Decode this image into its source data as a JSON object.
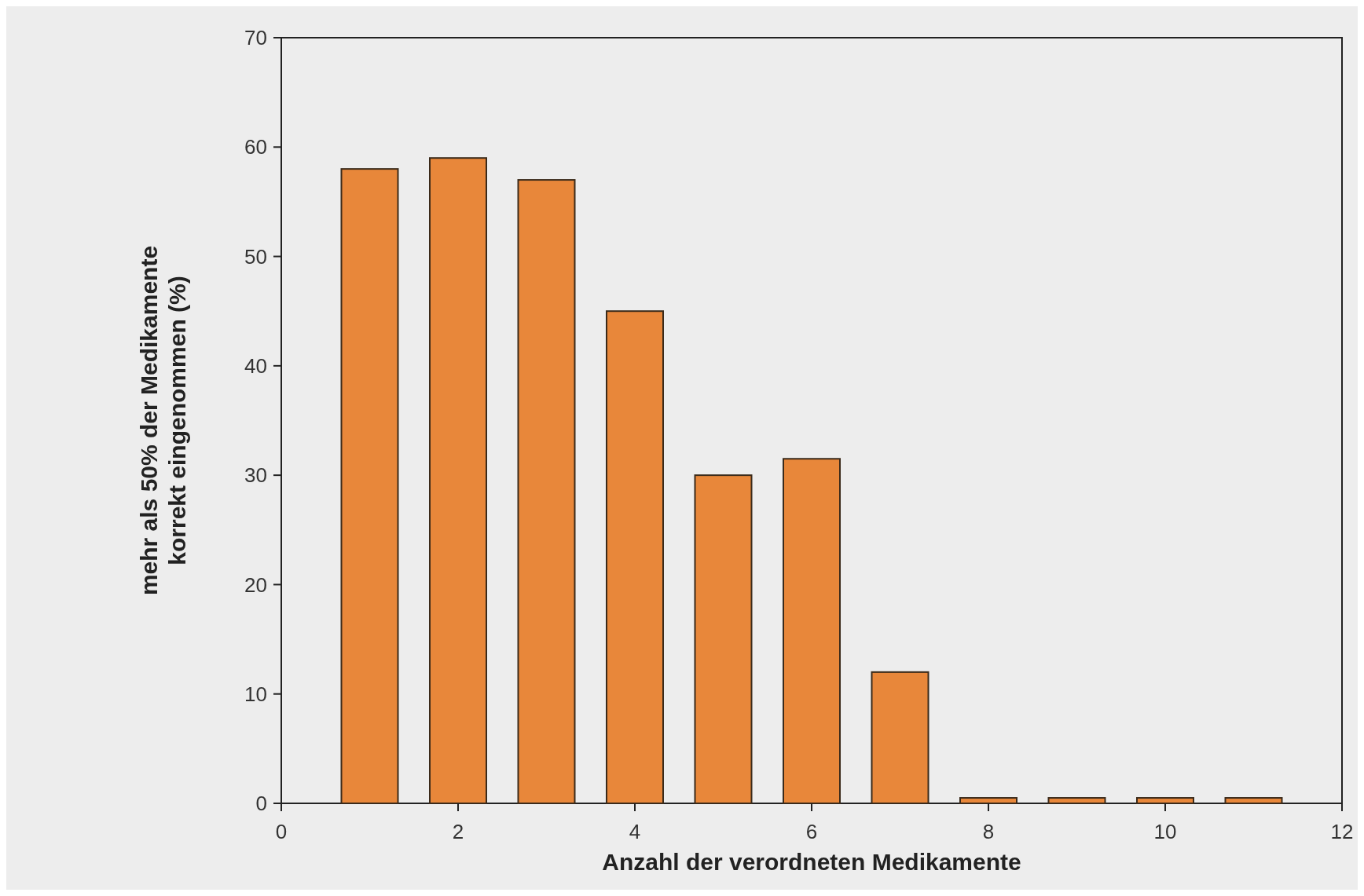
{
  "chart_data": {
    "type": "bar",
    "x": [
      1,
      2,
      3,
      4,
      5,
      6,
      7,
      8,
      9,
      10,
      11
    ],
    "values": [
      58,
      59,
      57,
      45,
      30,
      31.5,
      12,
      0.5,
      0.5,
      0.5,
      0.5
    ],
    "color": "#e8873a",
    "xlabel": "Anzahl der verordneten Medikamente",
    "ylabel": "mehr als 50% der Medikamente\nkorrekt eingenommen (%)",
    "xlim": [
      0,
      12
    ],
    "xticks": [
      0,
      2,
      4,
      6,
      8,
      10,
      12
    ],
    "ylim": [
      0,
      70
    ],
    "yticks": [
      0,
      10,
      20,
      30,
      40,
      50,
      60,
      70
    ],
    "grid": false
  }
}
